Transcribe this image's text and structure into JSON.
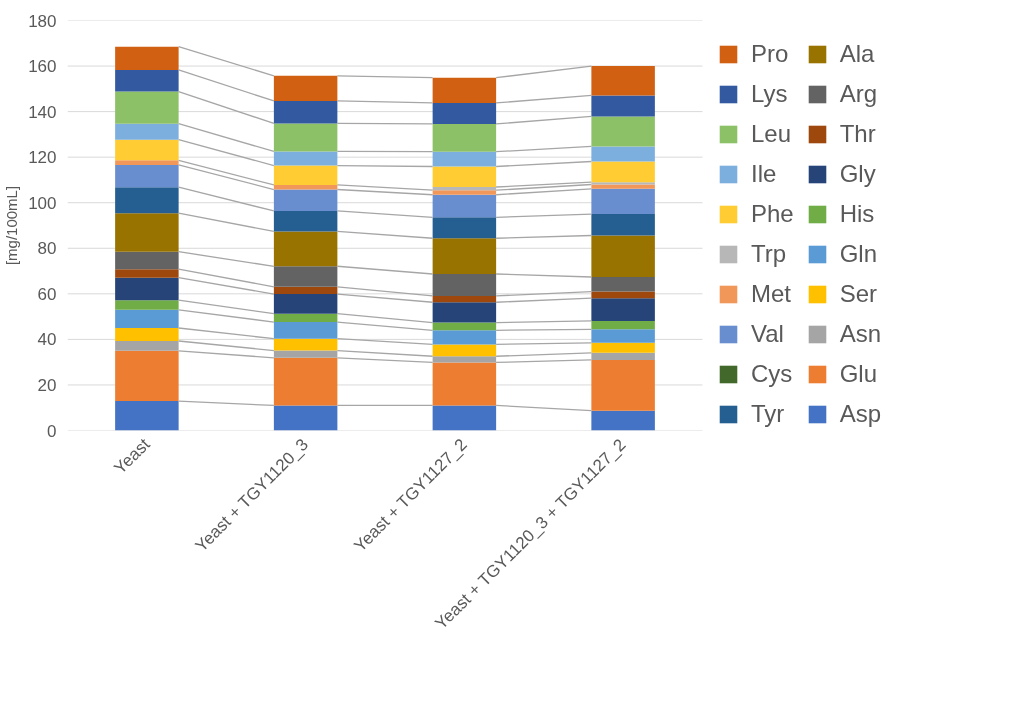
{
  "chart_data": {
    "type": "bar",
    "stacked": true,
    "ylabel": "[mg/100mL]",
    "categories": [
      "Yeast",
      "Yeast + TGY1120_3",
      "Yeast + TGY1127_2",
      "Yeast + TGY1120_3 + TGY1127_2"
    ],
    "ylim": [
      0,
      180
    ],
    "yticks": [
      0,
      20,
      40,
      60,
      80,
      100,
      120,
      140,
      160,
      180
    ],
    "grid": "y",
    "legend": "right",
    "series": [
      {
        "name": "Asp",
        "color": "#4472c4",
        "values": [
          12.9,
          11.0,
          11.0,
          8.7
        ]
      },
      {
        "name": "Glu",
        "color": "#ed7d31",
        "values": [
          22.1,
          20.9,
          18.9,
          22.3
        ]
      },
      {
        "name": "Asn",
        "color": "#a5a5a5",
        "values": [
          4.3,
          3.2,
          2.7,
          3.1
        ]
      },
      {
        "name": "Ser",
        "color": "#ffc000",
        "values": [
          5.7,
          5.2,
          5.2,
          4.4
        ]
      },
      {
        "name": "Gln",
        "color": "#5b9bd5",
        "values": [
          8.0,
          7.3,
          6.2,
          5.9
        ]
      },
      {
        "name": "His",
        "color": "#70ad47",
        "values": [
          4.2,
          3.7,
          3.4,
          3.7
        ]
      },
      {
        "name": "Gly",
        "color": "#264478",
        "values": [
          9.9,
          8.6,
          8.9,
          10.0
        ]
      },
      {
        "name": "Thr",
        "color": "#9e480e",
        "values": [
          3.7,
          3.2,
          2.8,
          2.9
        ]
      },
      {
        "name": "Arg",
        "color": "#636363",
        "values": [
          7.7,
          9.0,
          9.6,
          6.4
        ]
      },
      {
        "name": "Ala",
        "color": "#997300",
        "values": [
          16.9,
          15.3,
          15.7,
          18.2
        ]
      },
      {
        "name": "Tyr",
        "color": "#255e91",
        "values": [
          11.4,
          9.0,
          9.2,
          9.4
        ]
      },
      {
        "name": "Cys",
        "color": "#43682b",
        "values": [
          null,
          null,
          null,
          null
        ]
      },
      {
        "name": "Val",
        "color": "#698ed0",
        "values": [
          9.8,
          9.4,
          9.9,
          11.1
        ]
      },
      {
        "name": "Met",
        "color": "#f1975a",
        "values": [
          2.0,
          2.0,
          2.0,
          1.9
        ]
      },
      {
        "name": "Trp",
        "color": "#b7b7b7",
        "values": [
          null,
          null,
          1.4,
          1.0
        ]
      },
      {
        "name": "Phe",
        "color": "#ffcd33",
        "values": [
          9.1,
          8.5,
          9.0,
          9.1
        ]
      },
      {
        "name": "Ile",
        "color": "#7cafdd",
        "values": [
          7.0,
          6.2,
          6.5,
          6.6
        ]
      },
      {
        "name": "Leu",
        "color": "#8cc168",
        "values": [
          14.1,
          12.3,
          12.2,
          13.2
        ]
      },
      {
        "name": "Lys",
        "color": "#335aa1",
        "values": [
          9.5,
          9.9,
          9.2,
          9.2
        ]
      },
      {
        "name": "Pro",
        "color": "#d26012",
        "values": [
          10.2,
          11.0,
          11.1,
          12.9
        ]
      }
    ]
  }
}
